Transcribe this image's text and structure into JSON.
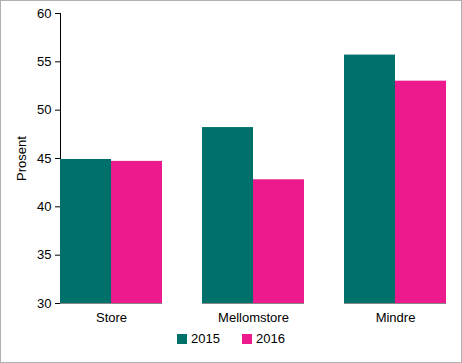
{
  "chart_data": {
    "type": "bar",
    "categories": [
      "Store",
      "Mellomstore",
      "Mindre"
    ],
    "series": [
      {
        "name": "2015",
        "color": "#00706a",
        "values": [
          44.9,
          48.2,
          55.7
        ]
      },
      {
        "name": "2016",
        "color": "#ec1a8c",
        "values": [
          44.7,
          42.8,
          53.0
        ]
      }
    ],
    "ylabel": "Prosent",
    "ylim": [
      30,
      60
    ],
    "yticks": [
      30,
      35,
      40,
      45,
      50,
      55,
      60
    ],
    "grid": false,
    "legend": "bottom"
  }
}
